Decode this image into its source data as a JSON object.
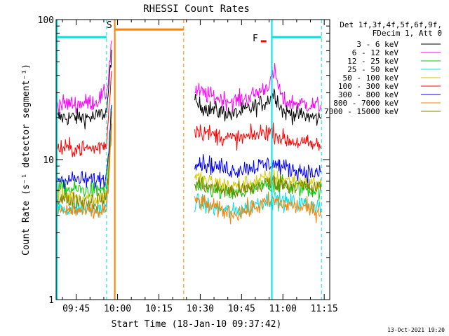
{
  "chart_data": {
    "type": "line",
    "title": "RHESSI Count Rates",
    "xlabel": "Start Time (18-Jan-10 09:37:42)",
    "ylabel": "Count Rate (s⁻¹ detector segment⁻¹)",
    "yscale": "log",
    "ylim": [
      1,
      100
    ],
    "xlim": [
      "09:37:42",
      "11:17:00"
    ],
    "x_tick_labels": [
      "09:45",
      "10:00",
      "10:15",
      "10:30",
      "10:45",
      "11:00",
      "11:15"
    ],
    "y_tick_labels": [
      "1",
      "10",
      "100"
    ],
    "legend_header": [
      "Det 1f,3f,4f,5f,6f,9f,",
      "FDecim 1, Att 0"
    ],
    "legend_position": "right",
    "timestamp": "13-Oct-2021 19:20",
    "series": [
      {
        "name": "3 - 6 keV",
        "color": "#000000",
        "segments": [
          {
            "t": [
              "09:38",
              "09:45",
              "09:52",
              "09:56",
              "09:57",
              "09:58"
            ],
            "y": [
              20,
              20,
              20,
              22,
              35,
              70
            ]
          },
          {
            "t": [
              "10:28",
              "10:35",
              "10:42",
              "10:48",
              "10:54",
              "10:57",
              "11:00",
              "11:08",
              "11:14"
            ],
            "y": [
              25,
              22.5,
              21,
              23,
              26,
              30,
              22,
              20.5,
              19.5
            ]
          }
        ]
      },
      {
        "name": "6 - 12 keV",
        "color": "#ff00ff",
        "segments": [
          {
            "t": [
              "09:38",
              "09:45",
              "09:52",
              "09:56",
              "09:57",
              "09:58"
            ],
            "y": [
              25,
              25,
              26,
              30,
              45,
              80
            ]
          },
          {
            "t": [
              "10:28",
              "10:35",
              "10:42",
              "10:48",
              "10:54",
              "10:57",
              "11:00",
              "11:08",
              "11:14"
            ],
            "y": [
              31,
              28,
              26,
              28,
              33,
              42,
              26,
              25,
              24
            ]
          }
        ]
      },
      {
        "name": "12 - 25 keV",
        "color": "#00cc00",
        "segments": [
          {
            "t": [
              "09:38",
              "09:45",
              "09:52",
              "09:56",
              "09:57",
              "09:58"
            ],
            "y": [
              6.2,
              6.1,
              6,
              6.3,
              12,
              28
            ]
          },
          {
            "t": [
              "10:28",
              "10:35",
              "10:42",
              "10:48",
              "10:54",
              "10:57",
              "11:00",
              "11:08",
              "11:14"
            ],
            "y": [
              6.5,
              6,
              5.6,
              6,
              6.6,
              6.7,
              6.5,
              6.2,
              6
            ]
          }
        ]
      },
      {
        "name": "25 - 50 keV",
        "color": "#00e0e0",
        "segments": [
          {
            "t": [
              "09:38",
              "09:45",
              "09:52",
              "09:56",
              "09:57",
              "09:58"
            ],
            "y": [
              4.5,
              4.5,
              4.4,
              4.6,
              9,
              22
            ]
          },
          {
            "t": [
              "10:28",
              "10:35",
              "10:42",
              "10:48",
              "10:54",
              "10:57",
              "11:00",
              "11:08",
              "11:14"
            ],
            "y": [
              5,
              4.5,
              4.2,
              4.6,
              5.2,
              5.2,
              5,
              4.8,
              4.6
            ]
          }
        ]
      },
      {
        "name": "50 - 100 keV",
        "color": "#d8c800",
        "segments": [
          {
            "t": [
              "09:38",
              "09:45",
              "09:52",
              "09:56",
              "09:57",
              "09:58"
            ],
            "y": [
              5.5,
              5.4,
              5.3,
              5.6,
              11,
              26
            ]
          },
          {
            "t": [
              "10:28",
              "10:35",
              "10:42",
              "10:48",
              "10:54",
              "10:57",
              "11:00",
              "11:08",
              "11:14"
            ],
            "y": [
              7.5,
              6.8,
              6.4,
              6.8,
              7.3,
              7.4,
              7.2,
              6.9,
              6.6
            ]
          }
        ]
      },
      {
        "name": "100 - 300 keV",
        "color": "#ff0000",
        "segments": [
          {
            "t": [
              "09:38",
              "09:45",
              "09:52",
              "09:56",
              "09:57",
              "09:58"
            ],
            "y": [
              12,
              12,
              12,
              13,
              25,
              50
            ]
          },
          {
            "t": [
              "10:28",
              "10:35",
              "10:42",
              "10:48",
              "10:54",
              "10:57",
              "11:00",
              "11:08",
              "11:14"
            ],
            "y": [
              16.5,
              15,
              14,
              14.5,
              16,
              15.5,
              14,
              13,
              12.5
            ]
          }
        ]
      },
      {
        "name": "300 - 800 keV",
        "color": "#0000ff",
        "segments": [
          {
            "t": [
              "09:38",
              "09:45",
              "09:52",
              "09:56",
              "09:57",
              "09:58"
            ],
            "y": [
              7.3,
              7.2,
              7.1,
              7.5,
              14,
              32
            ]
          },
          {
            "t": [
              "10:28",
              "10:35",
              "10:42",
              "10:48",
              "10:54",
              "10:57",
              "11:00",
              "11:08",
              "11:14"
            ],
            "y": [
              9.8,
              9,
              8.4,
              8.8,
              9.2,
              9.3,
              8.8,
              8.2,
              7.8
            ]
          }
        ]
      },
      {
        "name": "800 - 7000 keV",
        "color": "#ff8000",
        "segments": [
          {
            "t": [
              "09:38",
              "09:45",
              "09:52",
              "09:56",
              "09:57",
              "09:58"
            ],
            "y": [
              4.3,
              4.3,
              4.2,
              4.4,
              8,
              18
            ]
          },
          {
            "t": [
              "10:28",
              "10:35",
              "10:42",
              "10:48",
              "10:54",
              "10:57",
              "11:00",
              "11:08",
              "11:14"
            ],
            "y": [
              5.2,
              4.5,
              4.1,
              4.4,
              4.9,
              5.1,
              4.8,
              4.5,
              4.2
            ]
          }
        ]
      },
      {
        "name": "7000 - 15000 keV",
        "color": "#808000",
        "segments": [
          {
            "t": [
              "09:38",
              "09:45",
              "09:52",
              "09:56",
              "09:57",
              "09:58"
            ],
            "y": [
              5.2,
              5.1,
              5,
              5.3,
              10,
              24
            ]
          },
          {
            "t": [
              "10:28",
              "10:35",
              "10:42",
              "10:48",
              "10:54",
              "10:57",
              "11:00",
              "11:08",
              "11:14"
            ],
            "y": [
              6.8,
              6.2,
              5.9,
              6.2,
              6.8,
              6.9,
              6.7,
              6.4,
              6.2
            ]
          }
        ]
      }
    ],
    "annotations": [
      {
        "type": "vline",
        "t": "09:38",
        "color": "#00e0e0",
        "style": "solid"
      },
      {
        "type": "vline",
        "t": "09:56",
        "color": "#00e0e0",
        "style": "dashed"
      },
      {
        "type": "vline",
        "t": "09:59",
        "color": "#ff8000",
        "style": "solid"
      },
      {
        "type": "vline",
        "t": "10:24",
        "color": "#ff8000",
        "style": "dashed"
      },
      {
        "type": "vline",
        "t": "10:56",
        "color": "#00e0e0",
        "style": "solid"
      },
      {
        "type": "vline",
        "t": "11:14",
        "color": "#00e0e0",
        "style": "dashed"
      },
      {
        "type": "hbar",
        "t0": "09:38",
        "t1": "09:56",
        "y": 75,
        "color": "#00e0e0"
      },
      {
        "type": "hbar",
        "t0": "09:59",
        "t1": "10:24",
        "y": 85,
        "color": "#ff8000"
      },
      {
        "type": "hbar",
        "t0": "10:56",
        "t1": "11:14",
        "y": 75,
        "color": "#00e0e0"
      },
      {
        "type": "hbar",
        "t0": "10:52",
        "t1": "10:54",
        "y": 70,
        "color": "#ff0000"
      },
      {
        "type": "label",
        "t": "09:57",
        "y": 87,
        "text": "S",
        "color": "#ff8000"
      },
      {
        "type": "label",
        "t": "10:50",
        "y": 70,
        "text": "F",
        "color": "#ff0000"
      }
    ]
  }
}
